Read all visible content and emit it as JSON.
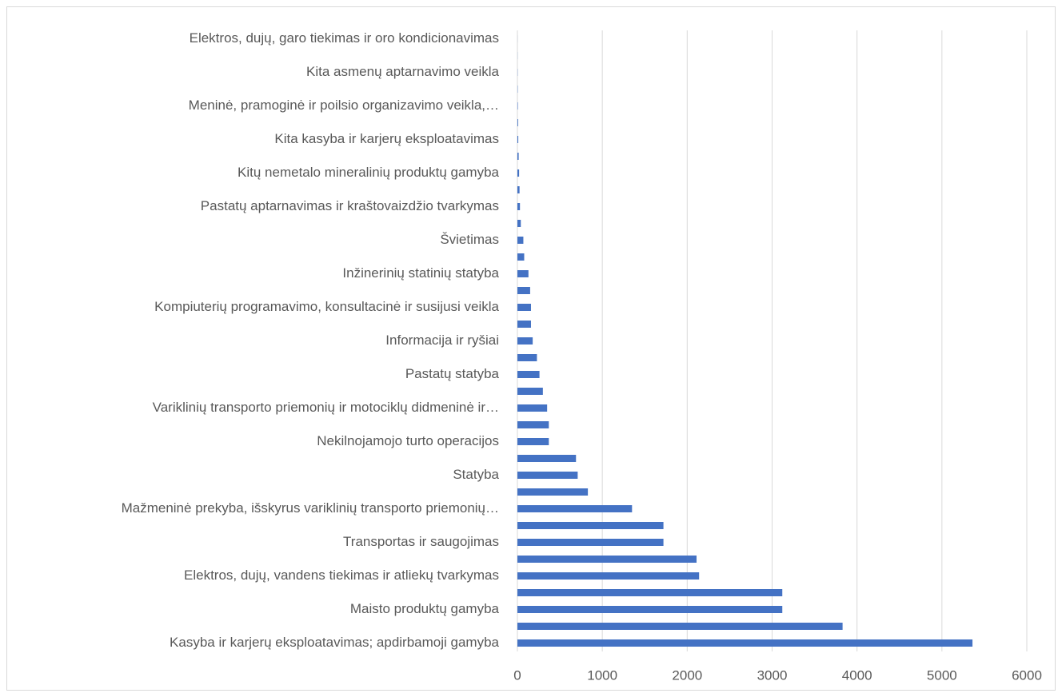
{
  "chart_data": {
    "type": "barh",
    "categories": [
      "Kasyba ir karjerų eksploatavimas; apdirbamoji gamyba",
      null,
      "Maisto produktų gamyba",
      null,
      "Elektros, dujų, vandens tiekimas ir atliekų tvarkymas",
      null,
      "Transportas ir saugojimas",
      null,
      "Mažmeninė prekyba, išskyrus variklinių transporto priemonių…",
      null,
      "Statyba",
      null,
      "Nekilnojamojo turto operacijos",
      null,
      "Variklinių transporto priemonių ir motociklų didmeninė ir…",
      null,
      "Pastatų statyba",
      null,
      "Informacija ir ryšiai",
      null,
      "Kompiuterių programavimo, konsultacinė ir susijusi veikla",
      null,
      "Inžinerinių statinių statyba",
      null,
      "Švietimas",
      null,
      "Pastatų aptarnavimas ir kraštovaizdžio tvarkymas",
      null,
      "Kitų nemetalo mineralinių produktų gamyba",
      null,
      "Kita kasyba ir karjerų eksploatavimas",
      null,
      "Meninė, pramoginė ir poilsio organizavimo veikla,…",
      null,
      "Kita asmenų aptarnavimo veikla",
      null,
      "Elektros, dujų, garo tiekimas ir oro kondicionavimas"
    ],
    "values": [
      5360,
      3830,
      3120,
      3120,
      2140,
      2110,
      1720,
      1720,
      1350,
      830,
      710,
      690,
      370,
      370,
      350,
      300,
      260,
      230,
      180,
      160,
      160,
      150,
      130,
      80,
      70,
      40,
      30,
      25,
      20,
      15,
      10,
      8,
      5,
      3,
      2,
      1,
      0.5
    ],
    "color": "#4472c4",
    "xlim": [
      0,
      6000
    ],
    "xticks": [
      0,
      1000,
      2000,
      3000,
      4000,
      5000,
      6000
    ],
    "grid": true
  }
}
